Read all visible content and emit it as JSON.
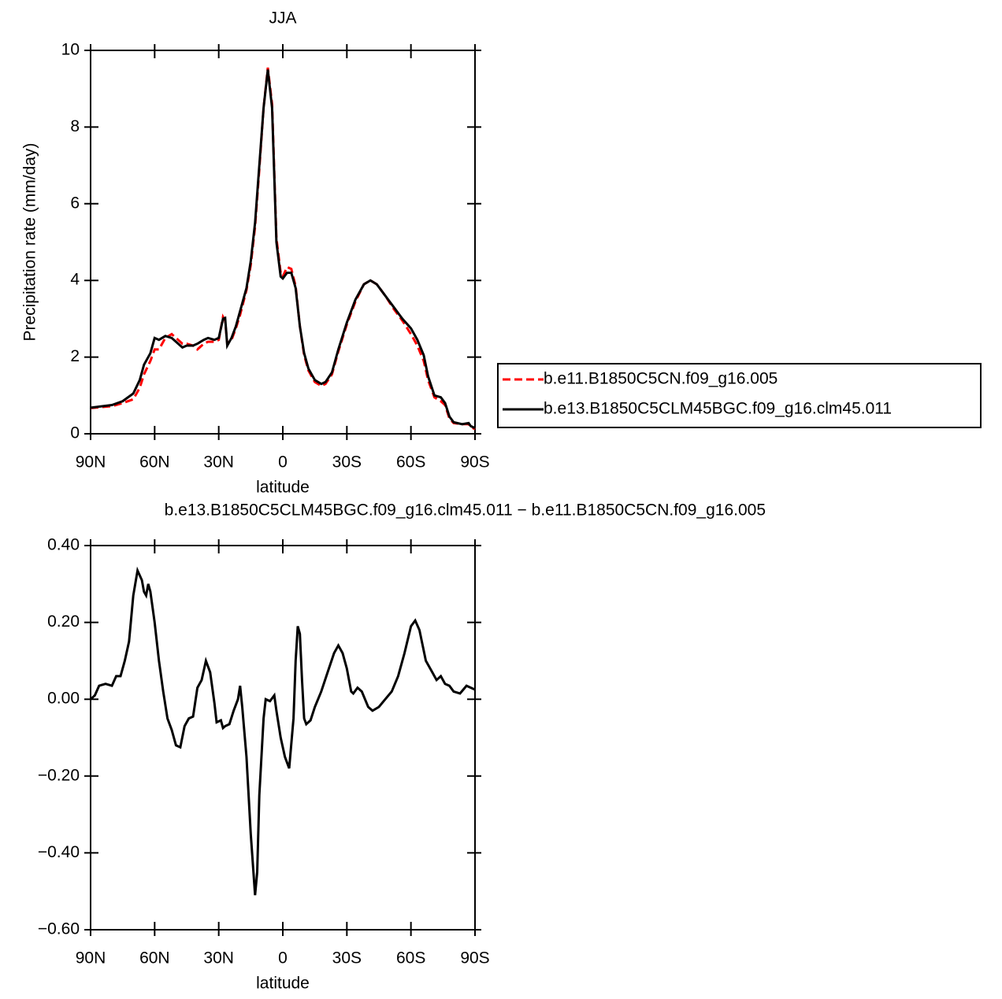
{
  "chart_data": [
    {
      "type": "line",
      "title": "JJA",
      "xlabel": "latitude",
      "ylabel": "Precipitation rate (mm/day)",
      "x": [
        90,
        80,
        75,
        70,
        67,
        65,
        62,
        60,
        58,
        55,
        52,
        50,
        47,
        45,
        42,
        40,
        37,
        35,
        32,
        30,
        28,
        27,
        26,
        24,
        22,
        20,
        17,
        15,
        13,
        11,
        9,
        7,
        5,
        3,
        1,
        0,
        -2,
        -4,
        -6,
        -8,
        -10,
        -12,
        -15,
        -18,
        -20,
        -23,
        -26,
        -30,
        -34,
        -38,
        -41,
        -44,
        -48,
        -52,
        -56,
        -60,
        -63,
        -66,
        -68,
        -71,
        -74,
        -76,
        -78,
        -80,
        -84,
        -87,
        -88,
        -90
      ],
      "series": [
        {
          "name": "b.e11.B1850C5CN.f09_g16.005",
          "color": "#ff0000",
          "linestyle": "dashed",
          "values": [
            0.67,
            0.72,
            0.8,
            0.9,
            1.2,
            1.55,
            1.9,
            2.2,
            2.2,
            2.5,
            2.6,
            2.5,
            2.35,
            2.35,
            2.3,
            2.2,
            2.35,
            2.4,
            2.4,
            2.45,
            3.05,
            2.95,
            2.35,
            2.45,
            2.75,
            3.1,
            3.75,
            4.4,
            5.4,
            6.9,
            8.5,
            9.55,
            8.6,
            5.1,
            4.2,
            4.1,
            4.35,
            4.3,
            3.85,
            2.8,
            2.05,
            1.65,
            1.35,
            1.25,
            1.3,
            1.55,
            2.15,
            2.85,
            3.45,
            3.9,
            4.0,
            3.9,
            3.6,
            3.25,
            2.95,
            2.6,
            2.3,
            1.9,
            1.4,
            0.95,
            0.85,
            0.75,
            0.4,
            0.28,
            0.25,
            0.25,
            0.18,
            0.12
          ]
        },
        {
          "name": "b.e13.B1850C5CLM45BGC.f09_g16.clm45.011",
          "color": "#000000",
          "linestyle": "solid",
          "values": [
            0.68,
            0.75,
            0.85,
            1.05,
            1.4,
            1.8,
            2.1,
            2.5,
            2.45,
            2.55,
            2.5,
            2.4,
            2.25,
            2.3,
            2.3,
            2.35,
            2.45,
            2.5,
            2.45,
            2.5,
            3.0,
            3.02,
            2.3,
            2.5,
            2.8,
            3.2,
            3.8,
            4.5,
            5.5,
            7.0,
            8.5,
            9.5,
            8.5,
            5.0,
            4.1,
            4.05,
            4.2,
            4.2,
            3.8,
            2.8,
            2.1,
            1.7,
            1.4,
            1.3,
            1.35,
            1.6,
            2.2,
            2.9,
            3.5,
            3.9,
            4.0,
            3.9,
            3.6,
            3.3,
            3.0,
            2.75,
            2.45,
            2.05,
            1.5,
            1.0,
            0.95,
            0.8,
            0.45,
            0.3,
            0.25,
            0.28,
            0.2,
            0.15
          ]
        }
      ],
      "xlim": [
        90,
        -90
      ],
      "xticks": [
        {
          "value": 90,
          "label": "90N"
        },
        {
          "value": 60,
          "label": "60N"
        },
        {
          "value": 30,
          "label": "30N"
        },
        0,
        {
          "value": -30,
          "label": "30S"
        },
        {
          "value": -60,
          "label": "60S"
        },
        {
          "value": -90,
          "label": "90S"
        }
      ],
      "ylim": [
        0,
        10
      ],
      "yticks": [
        0,
        2,
        4,
        6,
        8,
        10
      ],
      "legend": "right"
    },
    {
      "type": "line",
      "title": "b.e13.B1850C5CLM45BGC.f09_g16.clm45.011 − b.e11.B1850C5CN.f09_g16.005",
      "xlabel": "latitude",
      "x": [
        90,
        88,
        86,
        83,
        80,
        78,
        76,
        74,
        72,
        70,
        68,
        66,
        65,
        64,
        63,
        62,
        60,
        58,
        56,
        54,
        52,
        50,
        48,
        46,
        44,
        42,
        40,
        38,
        36,
        34,
        32,
        31,
        29,
        28,
        27,
        25,
        23,
        21,
        20,
        19,
        17,
        15,
        13,
        12,
        11,
        9,
        8,
        6,
        4,
        3,
        1,
        -1,
        -3,
        -5,
        -6,
        -7,
        -8,
        -9,
        -10,
        -11,
        -13,
        -15,
        -18,
        -21,
        -24,
        -26,
        -28,
        -30,
        -32,
        -33,
        -35,
        -37,
        -40,
        -42,
        -45,
        -48,
        -51,
        -54,
        -57,
        -60,
        -62,
        -64,
        -67,
        -70,
        -72,
        -74,
        -76,
        -78,
        -80,
        -83,
        -86,
        -90
      ],
      "series": [
        {
          "color": "#000000",
          "linestyle": "solid",
          "values": [
            0.0,
            0.01,
            0.035,
            0.04,
            0.035,
            0.06,
            0.06,
            0.1,
            0.15,
            0.27,
            0.335,
            0.31,
            0.28,
            0.27,
            0.3,
            0.28,
            0.2,
            0.1,
            0.02,
            -0.05,
            -0.08,
            -0.12,
            -0.125,
            -0.07,
            -0.05,
            -0.045,
            0.03,
            0.05,
            0.1,
            0.07,
            -0.01,
            -0.06,
            -0.055,
            -0.075,
            -0.07,
            -0.065,
            -0.03,
            0.0,
            0.035,
            -0.02,
            -0.15,
            -0.35,
            -0.51,
            -0.45,
            -0.25,
            -0.05,
            0.0,
            -0.005,
            0.01,
            -0.03,
            -0.1,
            -0.15,
            -0.18,
            -0.05,
            0.1,
            0.19,
            0.17,
            0.05,
            -0.05,
            -0.065,
            -0.055,
            -0.02,
            0.02,
            0.07,
            0.12,
            0.14,
            0.12,
            0.08,
            0.02,
            0.015,
            0.03,
            0.02,
            -0.02,
            -0.03,
            -0.02,
            0.0,
            0.02,
            0.06,
            0.12,
            0.19,
            0.205,
            0.18,
            0.1,
            0.07,
            0.05,
            0.06,
            0.04,
            0.035,
            0.02,
            0.015,
            0.035,
            0.025
          ]
        }
      ],
      "xlim": [
        90,
        -90
      ],
      "xticks": [
        {
          "value": 90,
          "label": "90N"
        },
        {
          "value": 60,
          "label": "60N"
        },
        {
          "value": 30,
          "label": "30N"
        },
        0,
        {
          "value": -30,
          "label": "30S"
        },
        {
          "value": -60,
          "label": "60S"
        },
        {
          "value": -90,
          "label": "90S"
        }
      ],
      "ylim": [
        -0.6,
        0.4
      ],
      "yticks": [
        {
          "value": -0.6,
          "label": "−0.60"
        },
        {
          "value": -0.4,
          "label": "−0.40"
        },
        {
          "value": -0.2,
          "label": "−0.20"
        },
        {
          "value": 0,
          "label": "0.00"
        },
        {
          "value": 0.2,
          "label": "0.20"
        },
        {
          "value": 0.4,
          "label": "0.40"
        }
      ]
    }
  ]
}
